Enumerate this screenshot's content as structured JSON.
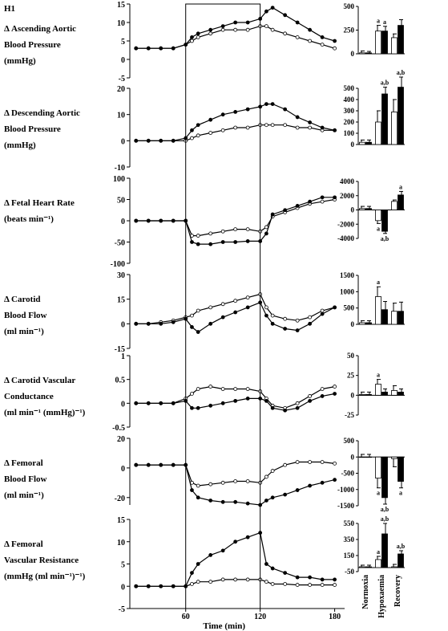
{
  "panel_label": "H1",
  "chart_data": [
    {
      "type": "line",
      "title_lines": [
        "Δ  Ascending Aortic",
        "Blood Pressure",
        "(mmHg)"
      ],
      "xlim": [
        15,
        188
      ],
      "ylim": [
        -5,
        15
      ],
      "yticks": [
        -5,
        0,
        5,
        10,
        15
      ],
      "x": [
        20,
        30,
        40,
        50,
        60,
        65,
        70,
        80,
        90,
        100,
        110,
        120,
        125,
        130,
        140,
        150,
        160,
        170,
        180
      ],
      "series": [
        {
          "color": "#ffffff",
          "values": [
            3,
            3,
            3,
            3,
            4,
            5,
            6,
            7,
            8,
            8,
            8,
            9,
            9,
            8,
            7,
            6,
            5,
            4,
            3
          ]
        },
        {
          "color": "#000000",
          "values": [
            3,
            3,
            3,
            3,
            4,
            6,
            7,
            8,
            9,
            10,
            10,
            11,
            13,
            14,
            12,
            10,
            8,
            6,
            5
          ]
        }
      ]
    },
    {
      "type": "bar",
      "ylim": [
        0,
        500
      ],
      "yticks": [
        0,
        250,
        500
      ],
      "series": [
        {
          "color": "#ffffff",
          "values": [
            10,
            240,
            170
          ],
          "errors": [
            20,
            60,
            40
          ],
          "annotations": [
            null,
            "a",
            null
          ]
        },
        {
          "color": "#000000",
          "values": [
            10,
            240,
            300
          ],
          "errors": [
            15,
            50,
            60
          ],
          "annotations": [
            null,
            "a",
            null
          ]
        }
      ]
    },
    {
      "type": "line",
      "title_lines": [
        "Δ Descending Aortic",
        "Blood Pressure",
        "(mmHg)"
      ],
      "xlim": [
        15,
        188
      ],
      "ylim": [
        -10,
        20
      ],
      "yticks": [
        -10,
        0,
        10,
        20
      ],
      "x": [
        20,
        30,
        40,
        50,
        60,
        65,
        70,
        80,
        90,
        100,
        110,
        120,
        125,
        130,
        140,
        150,
        160,
        170,
        180
      ],
      "series": [
        {
          "color": "#ffffff",
          "values": [
            0,
            0,
            0,
            0,
            0,
            1,
            2,
            3,
            4,
            5,
            5,
            6,
            6,
            6,
            6,
            5,
            5,
            4,
            4
          ]
        },
        {
          "color": "#000000",
          "values": [
            0,
            0,
            0,
            0,
            1,
            4,
            6,
            8,
            10,
            11,
            12,
            13,
            14,
            14,
            12,
            9,
            7,
            5,
            4
          ]
        }
      ]
    },
    {
      "type": "bar",
      "ylim": [
        0,
        500
      ],
      "yticks": [
        0,
        100,
        200,
        300,
        400,
        500
      ],
      "series": [
        {
          "color": "#ffffff",
          "values": [
            20,
            200,
            290
          ],
          "errors": [
            20,
            100,
            110
          ],
          "annotations": [
            null,
            null,
            null
          ]
        },
        {
          "color": "#000000",
          "values": [
            20,
            450,
            510
          ],
          "errors": [
            20,
            60,
            90
          ],
          "annotations": [
            null,
            "a,b",
            "a,b"
          ]
        }
      ]
    },
    {
      "type": "line",
      "title_lines": [
        "Δ Fetal Heart Rate",
        "(beats min⁻¹)"
      ],
      "xlim": [
        15,
        188
      ],
      "ylim": [
        -100,
        100
      ],
      "yticks": [
        -100,
        -50,
        0,
        50,
        100
      ],
      "x": [
        20,
        30,
        40,
        50,
        60,
        65,
        70,
        80,
        90,
        100,
        110,
        120,
        125,
        130,
        140,
        150,
        160,
        170,
        180
      ],
      "series": [
        {
          "color": "#ffffff",
          "values": [
            0,
            0,
            0,
            0,
            0,
            -35,
            -35,
            -30,
            -25,
            -20,
            -20,
            -25,
            -15,
            10,
            20,
            30,
            40,
            45,
            50
          ]
        },
        {
          "color": "#000000",
          "values": [
            0,
            0,
            0,
            0,
            0,
            -50,
            -55,
            -55,
            -50,
            -50,
            -48,
            -48,
            -30,
            15,
            25,
            35,
            45,
            55,
            55
          ]
        }
      ]
    },
    {
      "type": "bar",
      "ylim": [
        -4000,
        4000
      ],
      "yticks": [
        -4000,
        -2000,
        0,
        2000,
        4000
      ],
      "series": [
        {
          "color": "#ffffff",
          "values": [
            200,
            -1500,
            1200
          ],
          "errors": [
            300,
            400,
            200
          ],
          "annotations": [
            null,
            "a",
            null
          ]
        },
        {
          "color": "#000000",
          "values": [
            200,
            -3000,
            2100
          ],
          "errors": [
            300,
            300,
            500
          ],
          "annotations": [
            null,
            "a,b",
            "a"
          ]
        }
      ]
    },
    {
      "type": "line",
      "title_lines": [
        "Δ Carotid",
        "Blood Flow",
        "(ml min⁻¹)"
      ],
      "xlim": [
        15,
        188
      ],
      "ylim": [
        -15,
        30
      ],
      "yticks": [
        -15,
        0,
        15,
        30
      ],
      "x": [
        20,
        30,
        40,
        50,
        60,
        65,
        70,
        80,
        90,
        100,
        110,
        120,
        125,
        130,
        140,
        150,
        160,
        170,
        180
      ],
      "series": [
        {
          "color": "#ffffff",
          "values": [
            0,
            0,
            1,
            2,
            4,
            5,
            8,
            10,
            12,
            14,
            16,
            18,
            10,
            5,
            3,
            2,
            4,
            8,
            10
          ]
        },
        {
          "color": "#000000",
          "values": [
            0,
            0,
            0,
            1,
            3,
            -2,
            -5,
            0,
            4,
            7,
            10,
            13,
            5,
            0,
            -3,
            -4,
            0,
            6,
            10
          ]
        }
      ]
    },
    {
      "type": "bar",
      "ylim": [
        0,
        1500
      ],
      "yticks": [
        0,
        500,
        1000,
        1500
      ],
      "series": [
        {
          "color": "#ffffff",
          "values": [
            50,
            850,
            400
          ],
          "errors": [
            60,
            300,
            250
          ],
          "annotations": [
            null,
            "a",
            null
          ]
        },
        {
          "color": "#000000",
          "values": [
            50,
            450,
            400
          ],
          "errors": [
            60,
            250,
            280
          ],
          "annotations": [
            null,
            null,
            null
          ]
        }
      ]
    },
    {
      "type": "line",
      "title_lines": [
        "Δ Carotid Vascular",
        "Conductance",
        "(ml min⁻¹ (mmHg)⁻¹)"
      ],
      "xlim": [
        15,
        188
      ],
      "ylim": [
        -0.5,
        1
      ],
      "yticks": [
        -0.5,
        0,
        0.5,
        1
      ],
      "x": [
        20,
        30,
        40,
        50,
        60,
        65,
        70,
        80,
        90,
        100,
        110,
        120,
        125,
        130,
        140,
        150,
        160,
        170,
        180
      ],
      "series": [
        {
          "color": "#ffffff",
          "values": [
            0,
            0,
            0,
            0,
            0.1,
            0.2,
            0.3,
            0.35,
            0.3,
            0.3,
            0.3,
            0.25,
            0.1,
            -0.05,
            -0.1,
            0,
            0.15,
            0.3,
            0.35
          ]
        },
        {
          "color": "#000000",
          "values": [
            0,
            0,
            0,
            0,
            0.05,
            -0.1,
            -0.1,
            -0.05,
            0,
            0.05,
            0.1,
            0.1,
            0.05,
            -0.1,
            -0.15,
            -0.1,
            0.05,
            0.15,
            0.2
          ]
        }
      ]
    },
    {
      "type": "bar",
      "ylim": [
        -25,
        50
      ],
      "yticks": [
        -25,
        0,
        25,
        50
      ],
      "series": [
        {
          "color": "#ffffff",
          "values": [
            1,
            14,
            6
          ],
          "errors": [
            3,
            6,
            6
          ],
          "annotations": [
            null,
            "a",
            null
          ]
        },
        {
          "color": "#000000",
          "values": [
            1,
            4,
            4
          ],
          "errors": [
            3,
            4,
            4
          ],
          "annotations": [
            null,
            null,
            null
          ]
        }
      ]
    },
    {
      "type": "line",
      "title_lines": [
        "Δ Femoral",
        "Blood Flow",
        "(ml min⁻¹)"
      ],
      "xlim": [
        15,
        188
      ],
      "ylim": [
        -25,
        20
      ],
      "yticks": [
        -20,
        0,
        20
      ],
      "x": [
        20,
        30,
        40,
        50,
        60,
        65,
        70,
        80,
        90,
        100,
        110,
        120,
        125,
        130,
        140,
        150,
        160,
        170,
        180
      ],
      "series": [
        {
          "color": "#ffffff",
          "values": [
            2,
            2,
            2,
            2,
            2,
            -10,
            -12,
            -11,
            -10,
            -9,
            -9,
            -10,
            -6,
            -2,
            2,
            4,
            4,
            4,
            3
          ]
        },
        {
          "color": "#000000",
          "values": [
            2,
            2,
            2,
            2,
            2,
            -15,
            -20,
            -22,
            -23,
            -23,
            -24,
            -25,
            -22,
            -20,
            -18,
            -15,
            -12,
            -10,
            -8
          ]
        }
      ]
    },
    {
      "type": "bar",
      "ylim": [
        -1500,
        500
      ],
      "yticks": [
        -1500,
        -1000,
        -500,
        0,
        500
      ],
      "series": [
        {
          "color": "#ffffff",
          "values": [
            0,
            -650,
            -50
          ],
          "errors": [
            80,
            300,
            250
          ],
          "annotations": [
            null,
            "a",
            null
          ]
        },
        {
          "color": "#000000",
          "values": [
            0,
            -1250,
            -750
          ],
          "errors": [
            80,
            200,
            200
          ],
          "annotations": [
            null,
            "a,b",
            "a"
          ]
        }
      ]
    },
    {
      "type": "line",
      "title_lines": [
        "Δ Femoral",
        "Vascular Resistance",
        "(mmHg (ml min⁻¹)⁻¹)"
      ],
      "xlim": [
        15,
        188
      ],
      "ylim": [
        -5,
        15
      ],
      "yticks": [
        -5,
        0,
        5,
        10,
        15
      ],
      "xticks": [
        60,
        120,
        180
      ],
      "xlabel": "Time (min)",
      "x": [
        20,
        30,
        40,
        50,
        60,
        65,
        70,
        80,
        90,
        100,
        110,
        120,
        125,
        130,
        140,
        150,
        160,
        170,
        180
      ],
      "series": [
        {
          "color": "#ffffff",
          "values": [
            0,
            0,
            0,
            0,
            0,
            0.5,
            1,
            1,
            1.5,
            1.5,
            1.5,
            1.5,
            1,
            0.5,
            0.5,
            0.3,
            0.3,
            0.3,
            0.3
          ]
        },
        {
          "color": "#000000",
          "values": [
            0,
            0,
            0,
            0,
            0,
            3,
            5,
            7,
            8,
            10,
            11,
            12,
            5,
            4,
            3,
            2,
            2,
            1.5,
            1.5
          ]
        }
      ]
    },
    {
      "type": "bar",
      "ylim": [
        -50,
        550
      ],
      "yticks": [
        -50,
        150,
        350,
        550
      ],
      "categories": [
        "Normoxia",
        "Hypoxaemia",
        "Recovery"
      ],
      "series": [
        {
          "color": "#ffffff",
          "values": [
            10,
            100,
            10
          ],
          "errors": [
            20,
            40,
            30
          ],
          "annotations": [
            null,
            "a",
            null
          ]
        },
        {
          "color": "#000000",
          "values": [
            10,
            420,
            170
          ],
          "errors": [
            20,
            130,
            40
          ],
          "annotations": [
            null,
            "a,b",
            "a,b"
          ]
        }
      ]
    }
  ]
}
